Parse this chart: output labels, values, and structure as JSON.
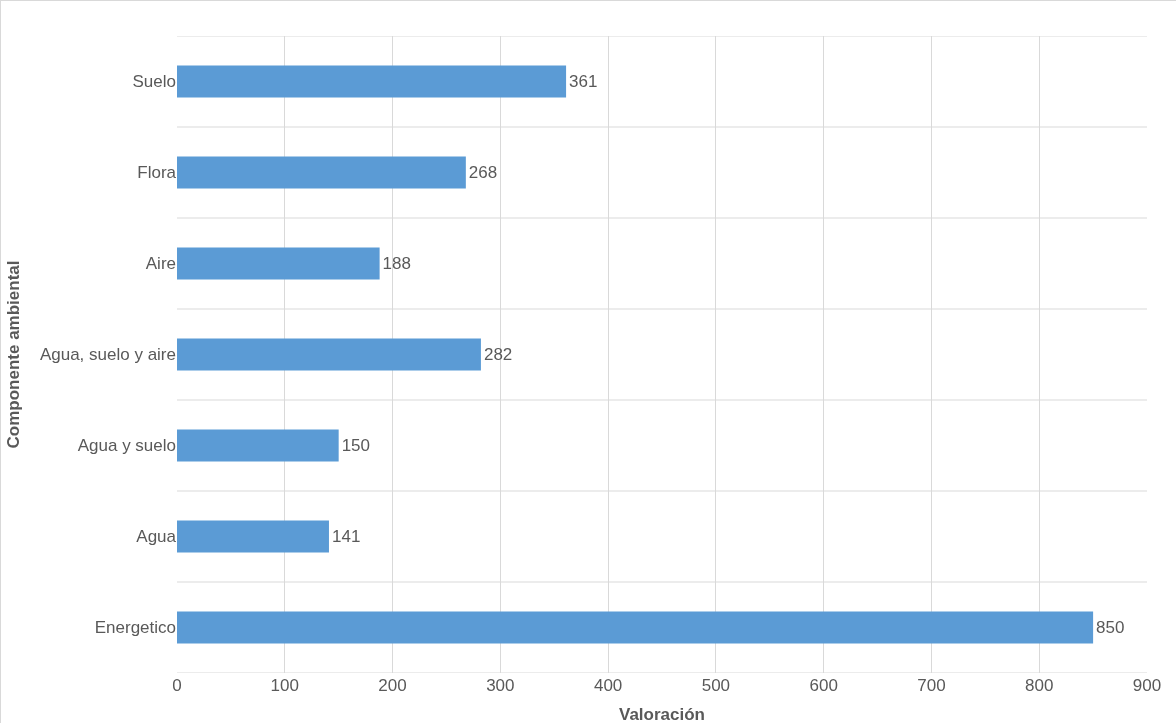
{
  "chart_data": {
    "type": "bar",
    "orientation": "horizontal",
    "xlabel": "Valoración",
    "ylabel": "Componente ambiental",
    "categories": [
      "Suelo",
      "Flora",
      "Aire",
      "Agua, suelo y aire",
      "Agua y suelo",
      "Agua",
      "Energetico"
    ],
    "values": [
      361,
      268,
      188,
      282,
      150,
      141,
      850
    ],
    "color": "#5b9bd5",
    "data_labels": true,
    "xlim": [
      0,
      900
    ],
    "xticks": [
      0,
      100,
      200,
      300,
      400,
      500,
      600,
      700,
      800,
      900
    ],
    "grid": true
  }
}
